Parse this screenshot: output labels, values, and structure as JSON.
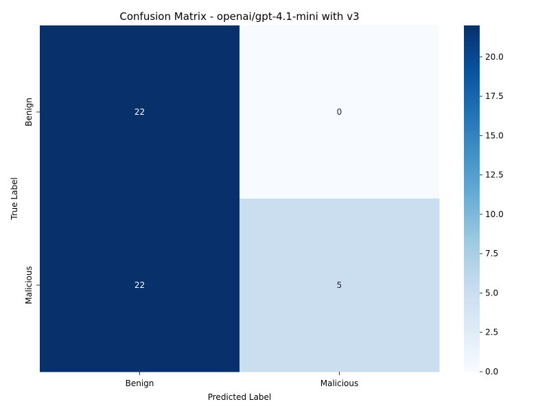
{
  "chart_data": {
    "type": "heatmap",
    "title": "Confusion Matrix - openai/gpt-4.1-mini with v3",
    "xlabel": "Predicted Label",
    "ylabel": "True Label",
    "x_categories": [
      "Benign",
      "Malicious"
    ],
    "y_categories": [
      "Benign",
      "Malicious"
    ],
    "values": [
      [
        22,
        0
      ],
      [
        22,
        5
      ]
    ],
    "colormap": "Blues",
    "color_range": [
      0,
      22
    ],
    "colorbar_ticks": [
      "0.0",
      "2.5",
      "5.0",
      "7.5",
      "10.0",
      "12.5",
      "15.0",
      "17.5",
      "20.0"
    ],
    "colors": {
      "min": "#f7fbff",
      "max": "#08306b"
    }
  }
}
